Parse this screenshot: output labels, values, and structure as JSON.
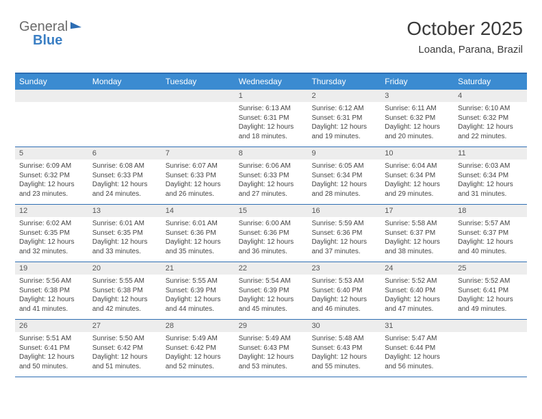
{
  "logo": {
    "part1": "General",
    "part2": "Blue"
  },
  "title": "October 2025",
  "location": "Loanda, Parana, Brazil",
  "colors": {
    "header_bar": "#3b8bd1",
    "accent_line": "#2d6db3",
    "daynum_bg": "#ededed",
    "text": "#444444"
  },
  "dow": [
    "Sunday",
    "Monday",
    "Tuesday",
    "Wednesday",
    "Thursday",
    "Friday",
    "Saturday"
  ],
  "weeks": [
    [
      {
        "n": "",
        "sr": "",
        "ss": "",
        "dl": ""
      },
      {
        "n": "",
        "sr": "",
        "ss": "",
        "dl": ""
      },
      {
        "n": "",
        "sr": "",
        "ss": "",
        "dl": ""
      },
      {
        "n": "1",
        "sr": "6:13 AM",
        "ss": "6:31 PM",
        "dl": "12 hours and 18 minutes."
      },
      {
        "n": "2",
        "sr": "6:12 AM",
        "ss": "6:31 PM",
        "dl": "12 hours and 19 minutes."
      },
      {
        "n": "3",
        "sr": "6:11 AM",
        "ss": "6:32 PM",
        "dl": "12 hours and 20 minutes."
      },
      {
        "n": "4",
        "sr": "6:10 AM",
        "ss": "6:32 PM",
        "dl": "12 hours and 22 minutes."
      }
    ],
    [
      {
        "n": "5",
        "sr": "6:09 AM",
        "ss": "6:32 PM",
        "dl": "12 hours and 23 minutes."
      },
      {
        "n": "6",
        "sr": "6:08 AM",
        "ss": "6:33 PM",
        "dl": "12 hours and 24 minutes."
      },
      {
        "n": "7",
        "sr": "6:07 AM",
        "ss": "6:33 PM",
        "dl": "12 hours and 26 minutes."
      },
      {
        "n": "8",
        "sr": "6:06 AM",
        "ss": "6:33 PM",
        "dl": "12 hours and 27 minutes."
      },
      {
        "n": "9",
        "sr": "6:05 AM",
        "ss": "6:34 PM",
        "dl": "12 hours and 28 minutes."
      },
      {
        "n": "10",
        "sr": "6:04 AM",
        "ss": "6:34 PM",
        "dl": "12 hours and 29 minutes."
      },
      {
        "n": "11",
        "sr": "6:03 AM",
        "ss": "6:34 PM",
        "dl": "12 hours and 31 minutes."
      }
    ],
    [
      {
        "n": "12",
        "sr": "6:02 AM",
        "ss": "6:35 PM",
        "dl": "12 hours and 32 minutes."
      },
      {
        "n": "13",
        "sr": "6:01 AM",
        "ss": "6:35 PM",
        "dl": "12 hours and 33 minutes."
      },
      {
        "n": "14",
        "sr": "6:01 AM",
        "ss": "6:36 PM",
        "dl": "12 hours and 35 minutes."
      },
      {
        "n": "15",
        "sr": "6:00 AM",
        "ss": "6:36 PM",
        "dl": "12 hours and 36 minutes."
      },
      {
        "n": "16",
        "sr": "5:59 AM",
        "ss": "6:36 PM",
        "dl": "12 hours and 37 minutes."
      },
      {
        "n": "17",
        "sr": "5:58 AM",
        "ss": "6:37 PM",
        "dl": "12 hours and 38 minutes."
      },
      {
        "n": "18",
        "sr": "5:57 AM",
        "ss": "6:37 PM",
        "dl": "12 hours and 40 minutes."
      }
    ],
    [
      {
        "n": "19",
        "sr": "5:56 AM",
        "ss": "6:38 PM",
        "dl": "12 hours and 41 minutes."
      },
      {
        "n": "20",
        "sr": "5:55 AM",
        "ss": "6:38 PM",
        "dl": "12 hours and 42 minutes."
      },
      {
        "n": "21",
        "sr": "5:55 AM",
        "ss": "6:39 PM",
        "dl": "12 hours and 44 minutes."
      },
      {
        "n": "22",
        "sr": "5:54 AM",
        "ss": "6:39 PM",
        "dl": "12 hours and 45 minutes."
      },
      {
        "n": "23",
        "sr": "5:53 AM",
        "ss": "6:40 PM",
        "dl": "12 hours and 46 minutes."
      },
      {
        "n": "24",
        "sr": "5:52 AM",
        "ss": "6:40 PM",
        "dl": "12 hours and 47 minutes."
      },
      {
        "n": "25",
        "sr": "5:52 AM",
        "ss": "6:41 PM",
        "dl": "12 hours and 49 minutes."
      }
    ],
    [
      {
        "n": "26",
        "sr": "5:51 AM",
        "ss": "6:41 PM",
        "dl": "12 hours and 50 minutes."
      },
      {
        "n": "27",
        "sr": "5:50 AM",
        "ss": "6:42 PM",
        "dl": "12 hours and 51 minutes."
      },
      {
        "n": "28",
        "sr": "5:49 AM",
        "ss": "6:42 PM",
        "dl": "12 hours and 52 minutes."
      },
      {
        "n": "29",
        "sr": "5:49 AM",
        "ss": "6:43 PM",
        "dl": "12 hours and 53 minutes."
      },
      {
        "n": "30",
        "sr": "5:48 AM",
        "ss": "6:43 PM",
        "dl": "12 hours and 55 minutes."
      },
      {
        "n": "31",
        "sr": "5:47 AM",
        "ss": "6:44 PM",
        "dl": "12 hours and 56 minutes."
      },
      {
        "n": "",
        "sr": "",
        "ss": "",
        "dl": ""
      }
    ]
  ],
  "labels": {
    "sunrise": "Sunrise:",
    "sunset": "Sunset:",
    "daylight": "Daylight:"
  }
}
